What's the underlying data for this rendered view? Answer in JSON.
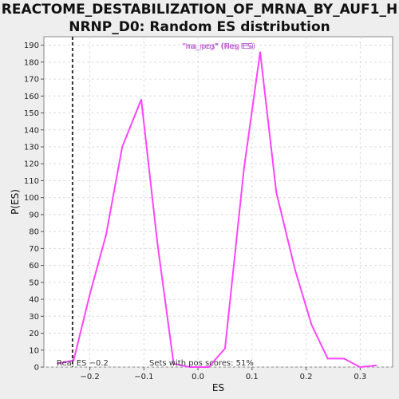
{
  "chart_data": {
    "type": "line",
    "title_lines": [
      "REACTOME_DESTABILIZATION_OF_MRNA_BY_AUF1_H",
      "NRNP_D0: Random ES distribution"
    ],
    "xlabel": "ES",
    "ylabel": "P(ES)",
    "xlim": [
      -0.285,
      0.36
    ],
    "ylim": [
      0,
      195
    ],
    "xticks": [
      -0.2,
      -0.1,
      0.0,
      0.1,
      0.2,
      0.3
    ],
    "xtick_labels": [
      "−0.2",
      "−0.1",
      "0.0",
      "0.1",
      "0.2",
      "0.3"
    ],
    "yticks": [
      0,
      10,
      20,
      30,
      40,
      50,
      60,
      70,
      80,
      90,
      100,
      110,
      120,
      130,
      140,
      150,
      160,
      170,
      180,
      190
    ],
    "grid": true,
    "legend": {
      "placement": "top-center",
      "entries": [
        {
          "text": "\"na_neg\" (Neg ES)",
          "color": "#cc33cc"
        },
        {
          "text": "\"na_pos\" (Pos ES)",
          "color": "#9966cc"
        }
      ]
    },
    "series": [
      {
        "color": "#ff44ff",
        "x": [
          -0.26,
          -0.23,
          -0.2,
          -0.17,
          -0.14,
          -0.105,
          -0.075,
          -0.045,
          -0.015,
          0.02,
          0.05,
          0.085,
          0.115,
          0.145,
          0.18,
          0.21,
          0.24,
          0.27,
          0.3,
          0.33
        ],
        "y": [
          2,
          4,
          43,
          78,
          130,
          158,
          73,
          2,
          0,
          0,
          11,
          117,
          186,
          103,
          57,
          25,
          5,
          5,
          0,
          1
        ]
      }
    ],
    "annotations": {
      "real_es_label": "Real ES −0.2",
      "real_es_value": -0.232,
      "pos_scores_label": "Sets with pos scores: 51%"
    }
  }
}
